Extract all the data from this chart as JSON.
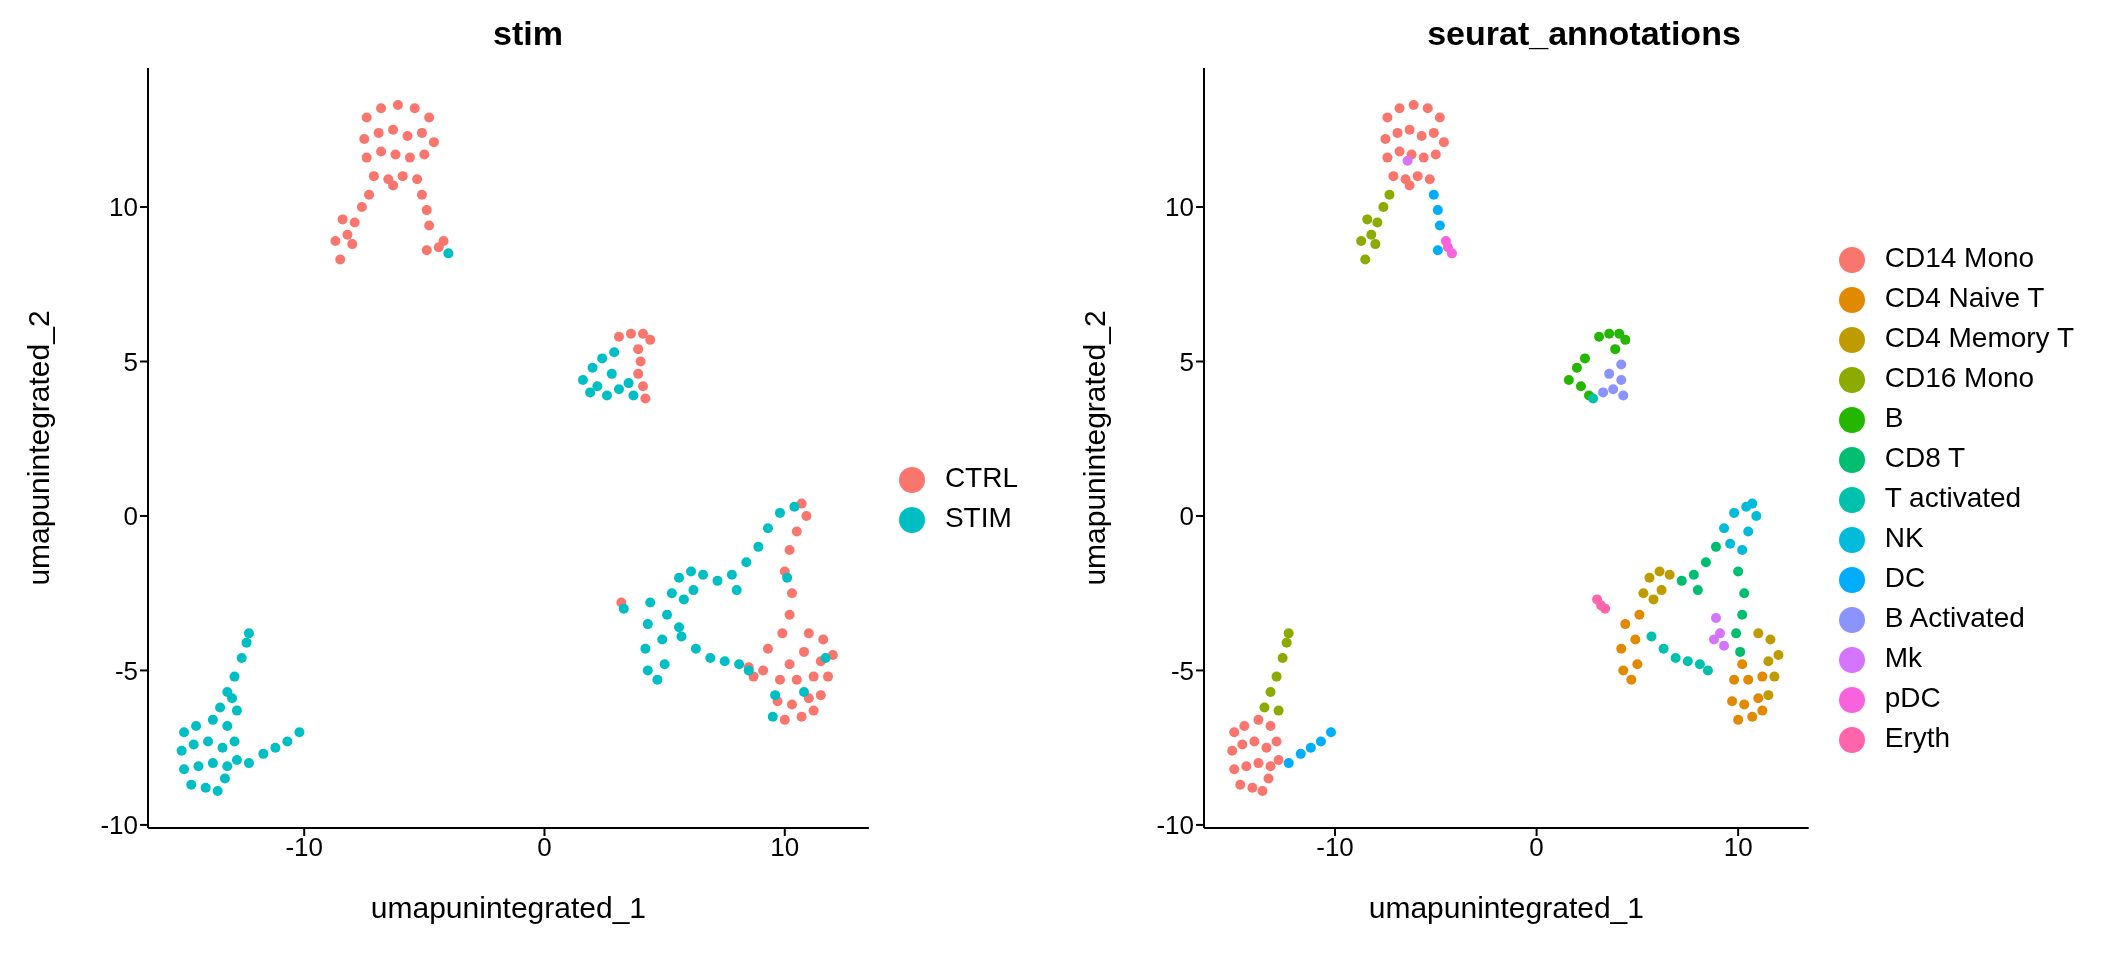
{
  "chart_data": [
    {
      "type": "scatter",
      "title": "stim",
      "xlabel": "umapunintegrated_1",
      "ylabel": "umapunintegrated_2",
      "xlim": [
        -16.5,
        13.5
      ],
      "ylim": [
        -10.1,
        14.5
      ],
      "xticks": [
        -10,
        0,
        10
      ],
      "yticks": [
        -10,
        -5,
        0,
        5,
        10
      ],
      "grid": false,
      "legend": "right",
      "marker": "circle",
      "series": [
        {
          "name": "CTRL",
          "color": "#f8766d",
          "x": [
            -7.4,
            -6.8,
            -6.1,
            -5.4,
            -4.8,
            -7.5,
            -6.9,
            -6.3,
            -5.7,
            -5.1,
            -4.6,
            -7.4,
            -6.8,
            -6.2,
            -5.6,
            -5.0,
            -7.1,
            -6.5,
            -5.9,
            -5.3,
            -6.3,
            -8.5,
            -8.7,
            -8.2,
            -8.4,
            -7.9,
            -7.6,
            -7.3,
            -8.0,
            -5.1,
            -4.9,
            -4.8,
            -4.9,
            -4.4,
            -4.2,
            3.1,
            3.6,
            4.1,
            4.4,
            3.9,
            4.0,
            3.9,
            4.1,
            4.2,
            10.7,
            10.9,
            10.5,
            10.2,
            10.0,
            10.3,
            10.2,
            9.9,
            11.0,
            11.6,
            12.0,
            11.5,
            10.8,
            10.2,
            9.8,
            10.5,
            11.2,
            11.8,
            9.7,
            10.3,
            11.0,
            11.5,
            10.0,
            10.7,
            11.2,
            8.5,
            8.7,
            9.1,
            3.2,
            9.3
          ],
          "values": [
            12.9,
            13.2,
            13.3,
            13.2,
            12.9,
            12.2,
            12.4,
            12.5,
            12.3,
            12.4,
            12.1,
            11.6,
            11.8,
            11.7,
            11.6,
            11.7,
            11.0,
            10.9,
            11.0,
            10.9,
            10.7,
            8.3,
            8.9,
            9.1,
            9.6,
            9.5,
            10.0,
            10.4,
            8.8,
            10.4,
            9.9,
            9.4,
            8.6,
            8.7,
            8.9,
            5.8,
            5.9,
            5.9,
            5.7,
            5.4,
            5.0,
            4.6,
            4.2,
            3.8,
            0.4,
            0.0,
            -0.5,
            -1.1,
            -1.8,
            -2.5,
            -3.2,
            -3.8,
            -3.8,
            -4.0,
            -4.5,
            -4.7,
            -4.4,
            -4.8,
            -5.3,
            -5.3,
            -5.2,
            -5.2,
            -6.0,
            -6.1,
            -5.9,
            -5.8,
            -6.6,
            -6.5,
            -6.3,
            -4.9,
            -5.2,
            -5.0,
            -2.8,
            -4.3
          ]
        },
        {
          "name": "STIM",
          "color": "#00bfc4",
          "x": [
            -15.0,
            -14.5,
            -13.8,
            -13.2,
            -15.1,
            -14.6,
            -14.0,
            -13.4,
            -12.9,
            -15.0,
            -14.4,
            -13.8,
            -13.2,
            -14.7,
            -14.1,
            -13.6,
            -13.3,
            -12.8,
            -13.5,
            -13.2,
            -12.9,
            -12.6,
            -12.4,
            -12.3,
            -12.8,
            -13.0,
            -12.3,
            -11.7,
            -11.2,
            -10.7,
            -10.2,
            -4.0,
            1.6,
            2.0,
            2.4,
            2.9,
            2.2,
            2.6,
            3.1,
            3.5,
            3.7,
            2.8,
            1.9,
            4.4,
            4.3,
            4.2,
            4.3,
            4.7,
            5.0,
            4.9,
            5.1,
            5.3,
            5.6,
            6.1,
            6.6,
            5.8,
            5.6,
            6.2,
            7.2,
            7.8,
            8.4,
            8.9,
            9.3,
            9.8,
            10.4,
            8.0,
            5.7,
            6.3,
            6.9,
            7.5,
            8.1,
            8.5,
            3.3,
            9.6,
            10.8,
            11.7,
            9.5,
            10.1
          ],
          "values": [
            -7.0,
            -6.8,
            -6.6,
            -6.8,
            -7.6,
            -7.4,
            -7.3,
            -7.5,
            -7.3,
            -8.2,
            -8.1,
            -8.0,
            -8.1,
            -8.7,
            -8.8,
            -8.9,
            -8.5,
            -7.9,
            -6.2,
            -5.7,
            -5.2,
            -4.6,
            -4.1,
            -3.8,
            -6.3,
            -5.9,
            -8.0,
            -7.7,
            -7.5,
            -7.3,
            -7.0,
            8.5,
            4.4,
            4.8,
            5.1,
            5.3,
            4.2,
            3.9,
            4.1,
            4.3,
            3.9,
            4.6,
            4.0,
            -2.8,
            -3.5,
            -4.3,
            -5.0,
            -5.3,
            -4.8,
            -4.0,
            -3.2,
            -2.5,
            -2.0,
            -1.8,
            -1.9,
            -2.7,
            -3.6,
            -2.4,
            -2.1,
            -1.9,
            -1.5,
            -1.0,
            -0.4,
            0.1,
            0.3,
            -2.4,
            -3.9,
            -4.3,
            -4.6,
            -4.7,
            -4.8,
            -5.0,
            -3.0,
            -5.8,
            -5.7,
            -4.6,
            -6.5,
            -2.0
          ]
        }
      ]
    },
    {
      "type": "scatter",
      "title": "seurat_annotations",
      "xlabel": "umapunintegrated_1",
      "ylabel": "umapunintegrated_2",
      "xlim": [
        -16.5,
        13.5
      ],
      "ylim": [
        -10.1,
        14.5
      ],
      "xticks": [
        -10,
        0,
        10
      ],
      "yticks": [
        -10,
        -5,
        0,
        5,
        10
      ],
      "grid": false,
      "legend": "right",
      "marker": "circle",
      "series": [
        {
          "name": "CD14 Mono",
          "color": "#f8766d",
          "x": [
            -7.4,
            -6.8,
            -6.1,
            -5.4,
            -4.8,
            -7.5,
            -6.9,
            -6.3,
            -5.7,
            -5.1,
            -4.6,
            -7.4,
            -6.8,
            -6.2,
            -5.6,
            -5.0,
            -7.1,
            -6.5,
            -5.9,
            -5.3,
            -6.3,
            -15.0,
            -14.5,
            -13.8,
            -13.2,
            -15.1,
            -14.6,
            -14.0,
            -13.4,
            -12.9,
            -15.0,
            -14.4,
            -13.8,
            -13.2,
            -14.7,
            -14.1,
            -13.6,
            -13.3,
            -12.8
          ],
          "values": [
            12.9,
            13.2,
            13.3,
            13.2,
            12.9,
            12.2,
            12.4,
            12.5,
            12.3,
            12.4,
            12.1,
            11.6,
            11.8,
            11.7,
            11.6,
            11.7,
            11.0,
            10.9,
            11.0,
            10.9,
            10.7,
            -7.0,
            -6.8,
            -6.6,
            -6.8,
            -7.6,
            -7.4,
            -7.3,
            -7.5,
            -7.3,
            -8.2,
            -8.1,
            -8.0,
            -8.1,
            -8.7,
            -8.8,
            -8.9,
            -8.5,
            -7.9
          ]
        },
        {
          "name": "CD4 Naive T",
          "color": "#e18a00",
          "x": [
            4.4,
            4.2,
            4.3,
            4.7,
            5.0,
            4.9,
            5.1,
            9.8,
            10.5,
            11.2,
            9.7,
            10.3,
            11.0,
            10.0,
            10.7,
            11.2,
            10.2
          ],
          "values": [
            -3.5,
            -4.3,
            -5.0,
            -5.3,
            -4.8,
            -4.0,
            -3.2,
            -5.3,
            -5.3,
            -5.2,
            -6.0,
            -6.1,
            -5.9,
            -6.6,
            -6.5,
            -6.3,
            -4.8
          ]
        },
        {
          "name": "CD4 Memory T",
          "color": "#be9c00",
          "x": [
            5.3,
            5.6,
            6.1,
            6.6,
            5.8,
            6.2,
            11.0,
            11.6,
            12.0,
            11.5,
            11.8,
            11.5
          ],
          "values": [
            -2.5,
            -2.0,
            -1.8,
            -1.9,
            -2.7,
            -2.4,
            -3.8,
            -4.0,
            -4.5,
            -4.7,
            -5.2,
            -5.8
          ]
        },
        {
          "name": "CD16 Mono",
          "color": "#8cab00",
          "x": [
            -8.5,
            -8.7,
            -8.2,
            -8.4,
            -7.9,
            -7.6,
            -7.3,
            -8.0,
            -13.5,
            -13.2,
            -12.9,
            -12.6,
            -12.4,
            -12.3,
            -12.8
          ],
          "values": [
            8.3,
            8.9,
            9.1,
            9.6,
            9.5,
            10.0,
            10.4,
            8.8,
            -6.2,
            -5.7,
            -5.2,
            -4.6,
            -4.1,
            -3.8,
            -6.3
          ]
        },
        {
          "name": "B",
          "color": "#24b700",
          "x": [
            1.6,
            2.0,
            2.4,
            2.2,
            2.6,
            3.1,
            3.6,
            4.1,
            4.4,
            3.9
          ],
          "values": [
            4.4,
            4.8,
            5.1,
            4.2,
            3.9,
            5.8,
            5.9,
            5.9,
            5.7,
            5.4
          ]
        },
        {
          "name": "CD8 T",
          "color": "#00be70",
          "x": [
            7.2,
            7.8,
            8.4,
            8.9,
            10.0,
            10.3,
            10.2,
            9.9,
            10.1,
            8.0
          ],
          "values": [
            -2.1,
            -1.9,
            -1.5,
            -1.0,
            -1.8,
            -2.5,
            -3.2,
            -3.8,
            -4.4,
            -2.4
          ]
        },
        {
          "name": "T activated",
          "color": "#00c1ab",
          "x": [
            5.7,
            6.3,
            6.9,
            7.5,
            8.1,
            8.5,
            2.8
          ],
          "values": [
            -3.9,
            -4.3,
            -4.6,
            -4.7,
            -4.8,
            -5.0,
            3.8
          ]
        },
        {
          "name": "NK",
          "color": "#00bbda",
          "x": [
            9.3,
            9.8,
            10.4,
            10.7,
            10.9,
            10.5,
            10.2,
            9.6
          ],
          "values": [
            -0.4,
            0.1,
            0.3,
            0.4,
            0.0,
            -0.5,
            -1.1,
            -0.9
          ]
        },
        {
          "name": "DC",
          "color": "#00acfc",
          "x": [
            -5.1,
            -4.9,
            -4.8,
            -4.9,
            -12.3,
            -11.7,
            -11.2,
            -10.7,
            -10.2
          ],
          "values": [
            10.4,
            9.9,
            9.4,
            8.6,
            -8.0,
            -7.7,
            -7.5,
            -7.3,
            -7.0
          ]
        },
        {
          "name": "B Activated",
          "color": "#8b93ff",
          "x": [
            3.3,
            3.8,
            4.2,
            4.3,
            3.6,
            4.2
          ],
          "values": [
            4.0,
            4.1,
            4.4,
            3.9,
            4.6,
            4.9
          ]
        },
        {
          "name": "Mk",
          "color": "#d575fe",
          "x": [
            8.9,
            9.1,
            9.3,
            8.8,
            -6.4
          ],
          "values": [
            -3.3,
            -3.8,
            -4.2,
            -4.0,
            11.5
          ]
        },
        {
          "name": "pDC",
          "color": "#f962dd",
          "x": [
            -4.4,
            -4.2,
            -4.5
          ],
          "values": [
            8.7,
            8.5,
            8.9
          ]
        },
        {
          "name": "Eryth",
          "color": "#ff65ac",
          "x": [
            3.0,
            3.2,
            3.4
          ],
          "values": [
            -2.7,
            -2.9,
            -3.0
          ]
        }
      ]
    }
  ]
}
